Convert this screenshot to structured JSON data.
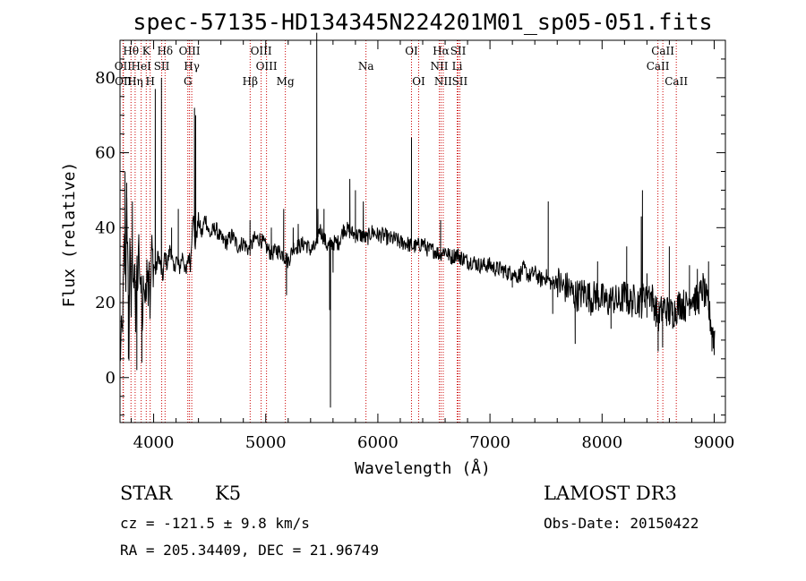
{
  "chart_data": {
    "type": "line",
    "title": "spec-57135-HD134345N224201M01_sp05-051.fits",
    "xlabel": "Wavelength (Å)",
    "ylabel": "Flux (relative)",
    "xlim": [
      3700,
      9100
    ],
    "ylim": [
      -12,
      90
    ],
    "x_ticks": [
      4000,
      5000,
      6000,
      7000,
      8000,
      9000
    ],
    "y_ticks": [
      0,
      20,
      40,
      60,
      80
    ],
    "grid": false,
    "spectral_lines": [
      {
        "label": "OII",
        "wavelength": 3727,
        "row": 2
      },
      {
        "label": "Hθ",
        "wavelength": 3798,
        "row": 1
      },
      {
        "label": "OII",
        "wavelength": 3730,
        "row": 3
      },
      {
        "label": "Hη",
        "wavelength": 3835,
        "row": 3
      },
      {
        "label": "HeI",
        "wavelength": 3889,
        "row": 2
      },
      {
        "label": "K",
        "wavelength": 3934,
        "row": 1
      },
      {
        "label": "H",
        "wavelength": 3969,
        "row": 3
      },
      {
        "label": "SII",
        "wavelength": 4072,
        "row": 2
      },
      {
        "label": "Hδ",
        "wavelength": 4102,
        "row": 1
      },
      {
        "label": "OIII",
        "wavelength": 4320,
        "row": 1
      },
      {
        "label": "Hγ",
        "wavelength": 4340,
        "row": 2
      },
      {
        "label": "G",
        "wavelength": 4305,
        "row": 3
      },
      {
        "label": "Hβ",
        "wavelength": 4861,
        "row": 3
      },
      {
        "label": "OIII",
        "wavelength": 4959,
        "row": 1
      },
      {
        "label": "OIII",
        "wavelength": 5007,
        "row": 2
      },
      {
        "label": "Mg",
        "wavelength": 5175,
        "row": 3
      },
      {
        "label": "Na",
        "wavelength": 5894,
        "row": 2
      },
      {
        "label": "OI",
        "wavelength": 6300,
        "row": 1
      },
      {
        "label": "OI",
        "wavelength": 6364,
        "row": 3
      },
      {
        "label": "Hα",
        "wavelength": 6563,
        "row": 1
      },
      {
        "label": "NII",
        "wavelength": 6548,
        "row": 2
      },
      {
        "label": "NII",
        "wavelength": 6583,
        "row": 3
      },
      {
        "label": "SII",
        "wavelength": 6716,
        "row": 1
      },
      {
        "label": "Li",
        "wavelength": 6708,
        "row": 2
      },
      {
        "label": "SII",
        "wavelength": 6731,
        "row": 3
      },
      {
        "label": "CaII",
        "wavelength": 8498,
        "row": 2
      },
      {
        "label": "CaII",
        "wavelength": 8542,
        "row": 1
      },
      {
        "label": "CaII",
        "wavelength": 8662,
        "row": 3
      }
    ],
    "series": [
      {
        "name": "flux",
        "anchors": [
          [
            3700,
            6
          ],
          [
            3720,
            12
          ],
          [
            3740,
            35
          ],
          [
            3750,
            22
          ],
          [
            3760,
            48
          ],
          [
            3770,
            28
          ],
          [
            3780,
            10
          ],
          [
            3790,
            40
          ],
          [
            3800,
            18
          ],
          [
            3810,
            33
          ],
          [
            3820,
            22
          ],
          [
            3830,
            38
          ],
          [
            3840,
            12
          ],
          [
            3850,
            30
          ],
          [
            3860,
            25
          ],
          [
            3870,
            36
          ],
          [
            3880,
            20
          ],
          [
            3890,
            30
          ],
          [
            3900,
            10
          ],
          [
            3910,
            28
          ],
          [
            3920,
            23
          ],
          [
            3930,
            18
          ],
          [
            3940,
            35
          ],
          [
            3950,
            24
          ],
          [
            3960,
            34
          ],
          [
            3970,
            16
          ],
          [
            3980,
            34
          ],
          [
            4000,
            30
          ],
          [
            4020,
            28
          ],
          [
            4040,
            33
          ],
          [
            4060,
            30
          ],
          [
            4080,
            26
          ],
          [
            4100,
            33
          ],
          [
            4120,
            30
          ],
          [
            4150,
            35
          ],
          [
            4180,
            28
          ],
          [
            4200,
            32
          ],
          [
            4230,
            29
          ],
          [
            4260,
            33
          ],
          [
            4290,
            27
          ],
          [
            4310,
            33
          ],
          [
            4330,
            30
          ],
          [
            4350,
            45
          ],
          [
            4370,
            35
          ],
          [
            4400,
            42
          ],
          [
            4430,
            38
          ],
          [
            4460,
            43
          ],
          [
            4500,
            38
          ],
          [
            4550,
            40
          ],
          [
            4600,
            37
          ],
          [
            4650,
            36
          ],
          [
            4700,
            38
          ],
          [
            4750,
            35
          ],
          [
            4800,
            36
          ],
          [
            4850,
            34
          ],
          [
            4900,
            37
          ],
          [
            4950,
            37
          ],
          [
            5000,
            35
          ],
          [
            5050,
            33
          ],
          [
            5100,
            34
          ],
          [
            5150,
            33
          ],
          [
            5200,
            31
          ],
          [
            5250,
            35
          ],
          [
            5300,
            35
          ],
          [
            5350,
            36
          ],
          [
            5400,
            34
          ],
          [
            5450,
            35
          ],
          [
            5480,
            40
          ],
          [
            5550,
            35
          ],
          [
            5600,
            36
          ],
          [
            5650,
            36
          ],
          [
            5700,
            40
          ],
          [
            5750,
            39
          ],
          [
            5800,
            38
          ],
          [
            5850,
            38
          ],
          [
            5900,
            37
          ],
          [
            5950,
            39
          ],
          [
            6000,
            38
          ],
          [
            6050,
            38
          ],
          [
            6100,
            37
          ],
          [
            6150,
            37
          ],
          [
            6200,
            36
          ],
          [
            6250,
            36
          ],
          [
            6300,
            35
          ],
          [
            6350,
            35
          ],
          [
            6400,
            36
          ],
          [
            6450,
            34
          ],
          [
            6500,
            34
          ],
          [
            6550,
            33
          ],
          [
            6600,
            34
          ],
          [
            6650,
            32
          ],
          [
            6700,
            33
          ],
          [
            6750,
            32
          ],
          [
            6800,
            31
          ],
          [
            6850,
            31
          ],
          [
            6900,
            30
          ],
          [
            6950,
            30
          ],
          [
            7000,
            30
          ],
          [
            7050,
            29
          ],
          [
            7100,
            29
          ],
          [
            7150,
            28
          ],
          [
            7200,
            28
          ],
          [
            7250,
            27
          ],
          [
            7300,
            29
          ],
          [
            7350,
            27
          ],
          [
            7400,
            28
          ],
          [
            7450,
            26
          ],
          [
            7500,
            27
          ],
          [
            7550,
            25
          ],
          [
            7600,
            26
          ],
          [
            7650,
            24
          ],
          [
            7700,
            24
          ],
          [
            7750,
            22
          ],
          [
            7800,
            22
          ],
          [
            7850,
            23
          ],
          [
            7900,
            21
          ],
          [
            7950,
            22
          ],
          [
            8000,
            21
          ],
          [
            8050,
            20
          ],
          [
            8100,
            21
          ],
          [
            8150,
            20
          ],
          [
            8200,
            22
          ],
          [
            8250,
            20
          ],
          [
            8300,
            21
          ],
          [
            8350,
            20
          ],
          [
            8400,
            24
          ],
          [
            8450,
            21
          ],
          [
            8500,
            16
          ],
          [
            8550,
            19
          ],
          [
            8600,
            17
          ],
          [
            8650,
            18
          ],
          [
            8700,
            20
          ],
          [
            8750,
            19
          ],
          [
            8800,
            22
          ],
          [
            8850,
            20
          ],
          [
            8900,
            24
          ],
          [
            8950,
            18
          ],
          [
            9000,
            10
          ],
          [
            9010,
            14
          ]
        ],
        "spikes": [
          [
            3745,
            55
          ],
          [
            3760,
            52
          ],
          [
            3775,
            5
          ],
          [
            3810,
            47
          ],
          [
            3850,
            2
          ],
          [
            3895,
            4
          ],
          [
            4015,
            77
          ],
          [
            4070,
            80
          ],
          [
            4160,
            40
          ],
          [
            4220,
            45
          ],
          [
            4365,
            72
          ],
          [
            4375,
            70
          ],
          [
            4860,
            42
          ],
          [
            5050,
            40
          ],
          [
            5160,
            45
          ],
          [
            5185,
            22
          ],
          [
            5245,
            40
          ],
          [
            5290,
            41
          ],
          [
            5455,
            92
          ],
          [
            5465,
            45
          ],
          [
            5520,
            45
          ],
          [
            5577,
            -8
          ],
          [
            5570,
            18
          ],
          [
            5600,
            28
          ],
          [
            5750,
            53
          ],
          [
            5800,
            50
          ],
          [
            5870,
            47
          ],
          [
            6300,
            64
          ],
          [
            6560,
            42
          ],
          [
            6740,
            30
          ],
          [
            7200,
            24
          ],
          [
            7520,
            47
          ],
          [
            7560,
            17
          ],
          [
            7760,
            9
          ],
          [
            7960,
            31
          ],
          [
            8080,
            13
          ],
          [
            8220,
            35
          ],
          [
            8350,
            43
          ],
          [
            8360,
            50
          ],
          [
            8400,
            16
          ],
          [
            8500,
            7
          ],
          [
            8540,
            8
          ],
          [
            8600,
            35
          ],
          [
            8630,
            13
          ],
          [
            8780,
            30
          ],
          [
            8850,
            29
          ],
          [
            8950,
            31
          ],
          [
            8980,
            7
          ],
          [
            9000,
            6
          ]
        ]
      }
    ]
  },
  "info": {
    "object_type": "STAR",
    "subclass": "K5",
    "survey": "LAMOST DR3",
    "redshift": "cz = -121.5 ± 9.8 km/s",
    "obs_date": "Obs-Date: 20150422",
    "coords": "RA = 205.34409, DEC =  21.96749"
  }
}
